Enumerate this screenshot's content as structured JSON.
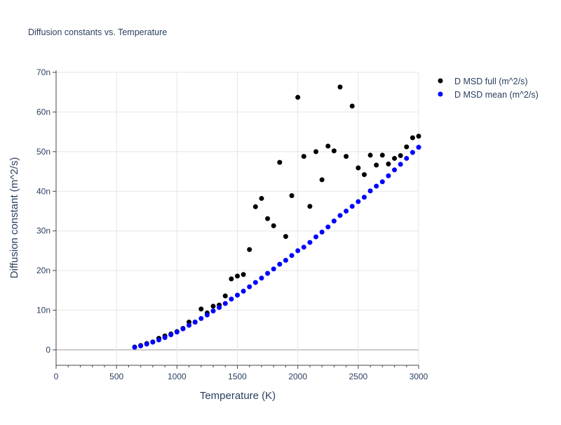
{
  "chart_data": {
    "type": "scatter",
    "title": "Diffusion constants vs. Temperature",
    "xlabel": "Temperature (K)",
    "ylabel": "Diffusion constant (m^2/s)",
    "xlim": [
      0,
      3000
    ],
    "ylim": [
      -4e-09,
      7e-08
    ],
    "x_ticks": [
      0,
      500,
      1000,
      1500,
      2000,
      2500,
      3000
    ],
    "x_tick_labels": [
      "0",
      "500",
      "1000",
      "1500",
      "2000",
      "2500",
      "3000"
    ],
    "y_ticks": [
      0,
      1e-08,
      2e-08,
      3e-08,
      4e-08,
      5e-08,
      6e-08,
      7e-08
    ],
    "y_tick_labels": [
      "0",
      "10n",
      "20n",
      "30n",
      "40n",
      "50n",
      "60n",
      "70n"
    ],
    "grid": true,
    "legend_position": "top-right outside",
    "x": [
      650,
      700,
      750,
      800,
      850,
      900,
      950,
      1000,
      1050,
      1100,
      1150,
      1200,
      1250,
      1300,
      1350,
      1400,
      1450,
      1500,
      1550,
      1600,
      1650,
      1700,
      1750,
      1800,
      1850,
      1900,
      1950,
      2000,
      2050,
      2100,
      2150,
      2200,
      2250,
      2300,
      2350,
      2400,
      2450,
      2500,
      2550,
      2600,
      2650,
      2700,
      2750,
      2800,
      2850,
      2900,
      2950,
      3000
    ],
    "series": [
      {
        "name": "D MSD full (m^2/s)",
        "color": "#000000",
        "values_n": [
          0.7,
          1.1,
          1.6,
          2.0,
          2.9,
          3.5,
          4.0,
          4.6,
          5.4,
          7.0,
          7.0,
          10.3,
          9.3,
          11.0,
          11.3,
          13.6,
          17.9,
          18.6,
          19.0,
          25.3,
          36.1,
          38.2,
          33.1,
          31.3,
          47.3,
          28.6,
          38.9,
          63.7,
          48.8,
          36.2,
          50.0,
          42.9,
          51.4,
          50.2,
          66.3,
          48.8,
          61.5,
          45.9,
          44.2,
          49.1,
          46.6,
          49.1,
          46.9,
          48.3,
          49.0,
          51.2,
          53.5,
          53.9
        ]
      },
      {
        "name": "D MSD mean (m^2/s)",
        "color": "#0000ff",
        "values_n": [
          0.65,
          1.0,
          1.45,
          1.95,
          2.5,
          3.1,
          3.8,
          4.5,
          5.3,
          6.2,
          7.0,
          7.9,
          8.8,
          9.8,
          10.7,
          11.7,
          12.8,
          13.8,
          14.8,
          15.9,
          17.0,
          18.1,
          19.3,
          20.4,
          21.6,
          22.6,
          23.8,
          25.0,
          25.9,
          27.1,
          28.5,
          29.7,
          31.0,
          32.5,
          33.9,
          35.0,
          36.2,
          37.4,
          38.5,
          40.1,
          41.3,
          42.4,
          43.9,
          45.4,
          46.8,
          48.3,
          49.8,
          51.1
        ]
      }
    ],
    "y_unit_scale": "values_n in units of 1e-9 (n)"
  }
}
